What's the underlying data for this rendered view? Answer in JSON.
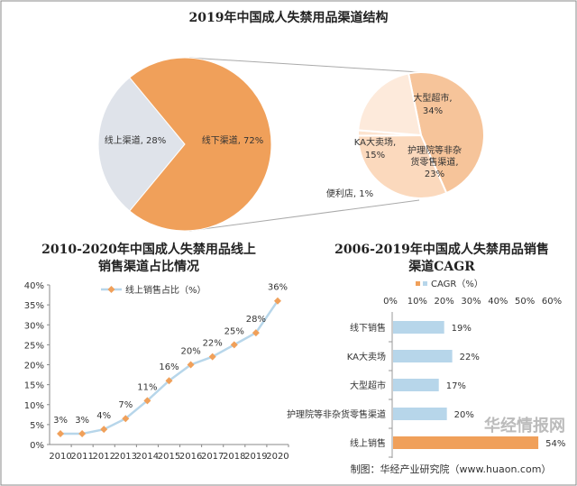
{
  "chart_data": [
    {
      "type": "pie",
      "title": "2019年中国成人失禁用品渠道结构",
      "slices": [
        {
          "label": "线上渠道",
          "value": 28,
          "text": "线上渠道, 28%",
          "color": "#dfe3ea"
        },
        {
          "label": "线下渠道",
          "value": 72,
          "text": "线下渠道, 72%",
          "color": "#f0a05a"
        }
      ],
      "breakdown_of": "线下渠道",
      "sub_slices": [
        {
          "label": "大型超市",
          "value": 34,
          "text1": "大型超市,",
          "text2": "34%",
          "color": "#f6c49a"
        },
        {
          "label": "护理院等非杂货零售渠道",
          "value": 23,
          "text1": "护理院等非杂",
          "text2": "货零售渠道,",
          "text3": "23%",
          "color": "#fbd9bd"
        },
        {
          "label": "便利店",
          "value": 1,
          "text1": "便利店, 1%",
          "color": "#fde4cf"
        },
        {
          "label": "KA大卖场",
          "value": 15,
          "text1": "KA大卖场,",
          "text2": "15%",
          "color": "#fdeadb"
        }
      ]
    },
    {
      "type": "line",
      "title": "2010-2020年中国成人失禁用品线上",
      "title2": "销售渠道占比情况",
      "legend": "线上销售占比（%）",
      "x": [
        "2010",
        "2011",
        "2012",
        "2013",
        "2014",
        "2015",
        "2016",
        "2017",
        "2018",
        "2019",
        "2020"
      ],
      "values": [
        2.7,
        2.7,
        3.8,
        6.5,
        11,
        16,
        20,
        22,
        25,
        28,
        36
      ],
      "labels": [
        "3%",
        "3%",
        "4%",
        "7%",
        "11%",
        "16%",
        "20%",
        "22%",
        "25%",
        "28%",
        "36%"
      ],
      "yticks": [
        "0%",
        "5%",
        "10%",
        "15%",
        "20%",
        "25%",
        "30%",
        "35%",
        "40%"
      ],
      "ylim": [
        0,
        40
      ],
      "line_color": "#b7d6ea",
      "marker_color": "#f0a05a"
    },
    {
      "type": "bar",
      "orientation": "horizontal",
      "title": "2006-2019年中国成人失禁用品销售",
      "title2": "渠道CAGR",
      "legend": "CAGR（%）",
      "categories": [
        "线下销售",
        "KA大卖场",
        "大型超市",
        "护理院等非杂货零售渠道",
        "线上销售"
      ],
      "values": [
        19,
        22,
        17,
        20,
        54
      ],
      "labels": [
        "19%",
        "22%",
        "17%",
        "20%",
        "54%"
      ],
      "colors": [
        "#b7d6ea",
        "#b7d6ea",
        "#b7d6ea",
        "#b7d6ea",
        "#f0a05a"
      ],
      "xticks": [
        "0%",
        "10%",
        "20%",
        "30%",
        "40%",
        "50%",
        "60%"
      ],
      "xlim": [
        0,
        60
      ]
    }
  ],
  "footer": {
    "source": "制图：华经产业研究院（www.huaon.com）",
    "watermark": "华经情报网"
  }
}
